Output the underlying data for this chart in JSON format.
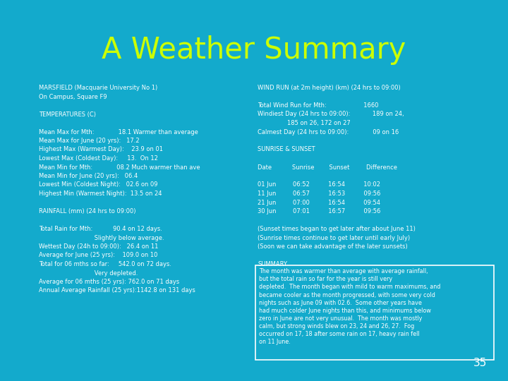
{
  "bg_color": "#13AACC",
  "title": "A Weather Summary",
  "title_color": "#CCFF00",
  "title_fontsize": 30,
  "text_color": "#FFFFFF",
  "page_number": "35",
  "left_lines": [
    "MARSFIELD (Macquarie University No 1)",
    "On Campus, Square F9",
    "",
    "TEMPERATURES (C)",
    "",
    "Mean Max for Mth:             18.1 Warmer than average",
    "Mean Max for June (20 yrs):   17.2",
    "Highest Max (Warmest Day):    23.9 on 01",
    "Lowest Max (Coldest Day):     13.  On 12",
    "Mean Min for Mth:             08.2 Much warmer than ave",
    "Mean Min for June (20 yrs):   06.4",
    "Lowest Min (Coldest Night):   02.6 on 09",
    "Highest Min (Warmest Night):  13.5 on 24",
    "",
    "RAINFALL (mm) (24 hrs to 09:00)",
    "",
    "Total Rain for Mth:           90.4 on 12 days.",
    "                              Slightly below average.",
    "Wettest Day (24h to 09:00):   26.4 on 11",
    "Average for June (25 yrs):    109.0 on 10",
    "Total for 06 mths so far:     542.0 on 72 days.",
    "                              Very depleted.",
    "Average for 06 mths (25 yrs): 762.0 on 71 days",
    "Annual Average Rainfall (25 yrs):1142.8 on 131 days"
  ],
  "right_lines": [
    "WIND RUN (at 2m height) (km) (24 hrs to 09:00)",
    "",
    "Total Wind Run for Mth:                    1660",
    "Windiest Day (24 hrs to 09:00):            189 on 24,",
    "                185 on 26, 172 on 27",
    "Calmest Day (24 hrs to 09:00):             09 on 16",
    "",
    "SUNRISE & SUNSET",
    "",
    "Date           Sunrise        Sunset         Difference",
    "",
    "01 Jun         06:52          16:54          10:02",
    "11 Jun         06:57          16:53          09:56",
    "21 Jun         07:00          16:54          09:54",
    "30 Jun         07:01          16:57          09:56",
    "",
    "(Sunset times began to get later after about June 11)",
    "(Sunrise times continue to get later until early July)",
    "(Soon we can take advantage of the later sunsets)",
    "",
    "SUMMARY"
  ],
  "summary_text": "The month was warmer than average with average rainfall,\nbut the total rain so far for the year is still very\ndepleted.  The month began with mild to warm maximums, and\nbecame cooler as the month progressed, with some very cold\nnights such as June 09 with 02.6.  Some other years have\nhad much colder June nights than this, and minimums below\nzero in June are not very unusual.  The month was mostly\ncalm, but strong winds blew on 23, 24 and 26, 27.  Fog\noccurred on 17, 18 after some rain on 17, heavy rain fell\non 11 June."
}
